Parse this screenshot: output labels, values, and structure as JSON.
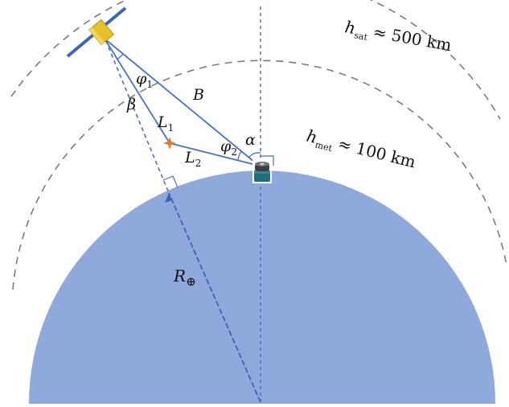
{
  "labels": {
    "h_sat": {
      "var": "h",
      "sub": "sat",
      "rest": "≈ 500 km"
    },
    "h_met": {
      "var": "h",
      "sub": "met",
      "rest": "≈ 100 km"
    },
    "B": "B",
    "L1": {
      "var": "L",
      "sub": "1"
    },
    "L2": {
      "var": "L",
      "sub": "2"
    },
    "phi1": {
      "var": "φ",
      "sub": "1"
    },
    "phi2": {
      "var": "φ",
      "sub": "2"
    },
    "alpha": "α",
    "beta": "β",
    "R_earth": {
      "var": "R",
      "sub": "⊕"
    }
  },
  "colors": {
    "earth": "#8fa9dc",
    "ray": "#4a72c4",
    "dashed_arc": "#7a7a7a",
    "satellite_body": "#e6c12c",
    "satellite_panel": "#3f66b5",
    "meteor": "#e07a2a",
    "station": "#1f6e77"
  },
  "icons": {
    "satellite": "satellite-icon",
    "meteor": "meteor-flash-icon",
    "ground_station": "ground-station-icon"
  }
}
